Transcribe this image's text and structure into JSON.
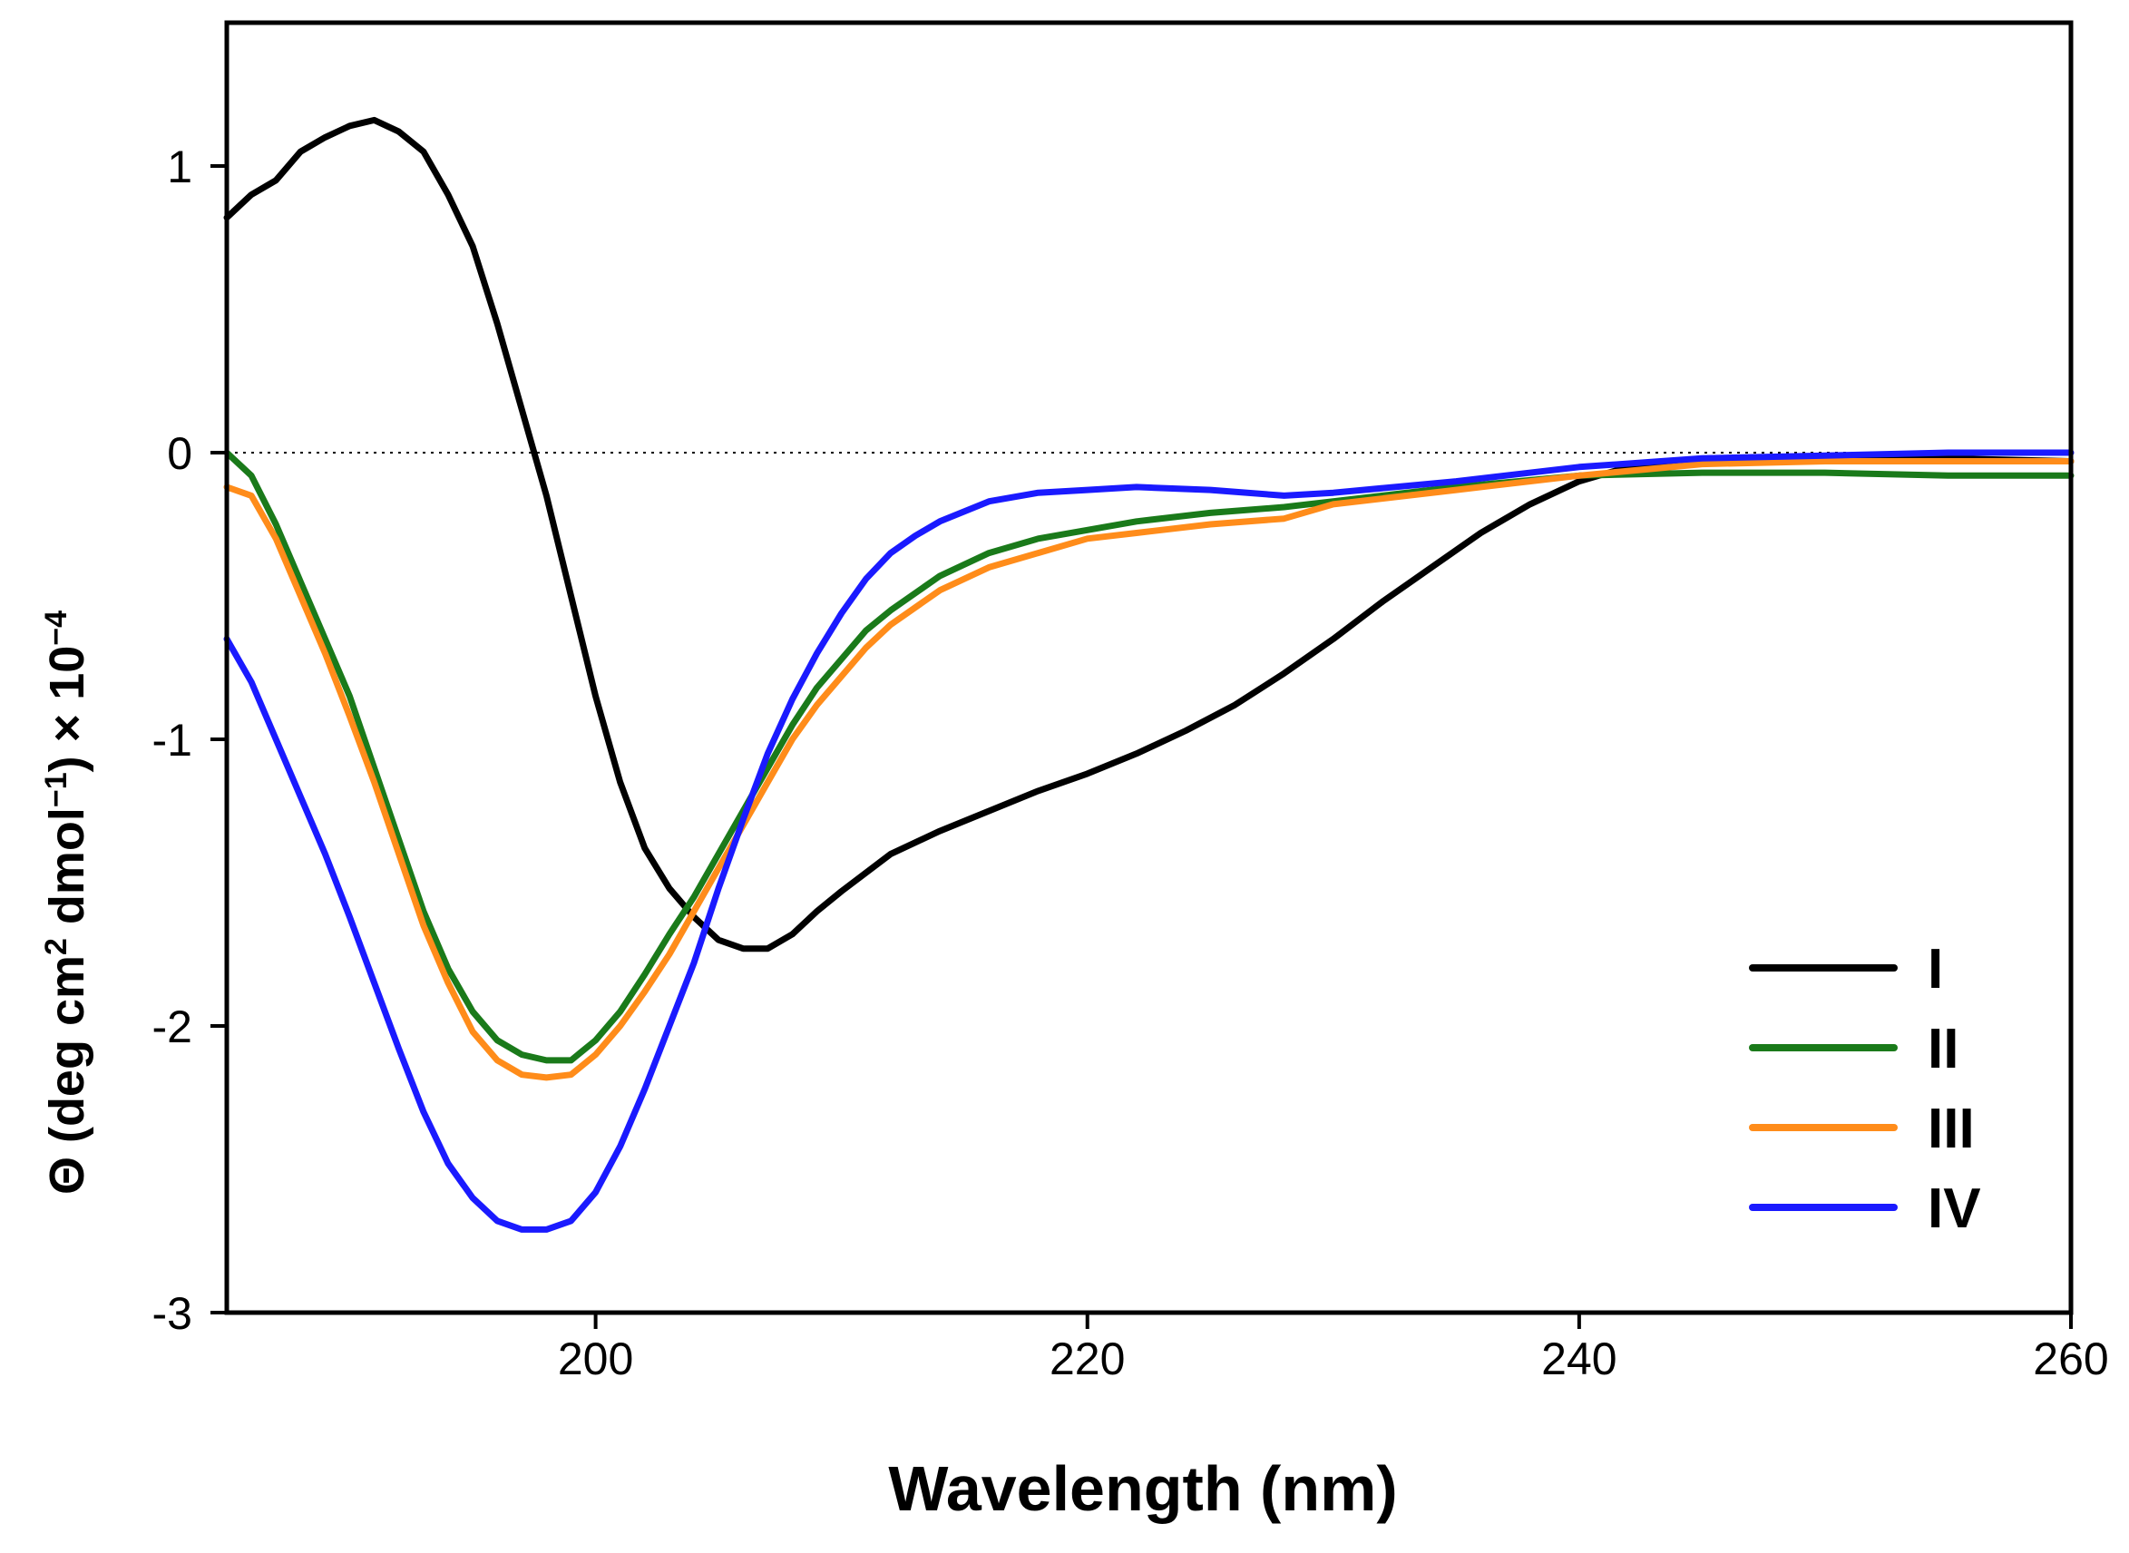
{
  "chart_data": {
    "type": "line",
    "title": "",
    "xlabel": "Wavelength (nm)",
    "ylabel": {
      "main": "Θ (deg cm",
      "sup1": "2",
      "mid": " dmol",
      "sup2": "−1",
      "tail": ") × 10",
      "sup3": "−4"
    },
    "xlim": [
      185,
      260
    ],
    "ylim": [
      -3,
      1.5
    ],
    "xticks": [
      200,
      220,
      240,
      260
    ],
    "xtick_labels": [
      "200",
      "220",
      "240",
      "260"
    ],
    "yticks": [
      1,
      0,
      -1,
      -2,
      -3
    ],
    "ytick_labels": [
      "1",
      "0",
      "-1",
      "-2",
      "-3"
    ],
    "zero_line": true,
    "legend_position": "bottom-right",
    "series": [
      {
        "name": "I",
        "color": "#000000",
        "x": [
          185,
          186,
          187,
          188,
          189,
          190,
          191,
          192,
          193,
          194,
          195,
          196,
          197,
          198,
          199,
          200,
          201,
          202,
          203,
          204,
          205,
          206,
          207,
          208,
          209,
          210,
          212,
          214,
          216,
          218,
          220,
          222,
          224,
          226,
          228,
          230,
          232,
          234,
          236,
          238,
          240,
          242,
          245,
          250,
          255,
          260
        ],
        "y": [
          0.82,
          0.9,
          0.95,
          1.05,
          1.1,
          1.14,
          1.16,
          1.12,
          1.05,
          0.9,
          0.72,
          0.45,
          0.15,
          -0.15,
          -0.5,
          -0.85,
          -1.15,
          -1.38,
          -1.52,
          -1.62,
          -1.7,
          -1.73,
          -1.73,
          -1.68,
          -1.6,
          -1.53,
          -1.4,
          -1.32,
          -1.25,
          -1.18,
          -1.12,
          -1.05,
          -0.97,
          -0.88,
          -0.77,
          -0.65,
          -0.52,
          -0.4,
          -0.28,
          -0.18,
          -0.1,
          -0.05,
          -0.03,
          -0.02,
          -0.02,
          -0.03
        ]
      },
      {
        "name": "II",
        "color": "#1a7a1a",
        "x": [
          185,
          186,
          187,
          188,
          189,
          190,
          191,
          192,
          193,
          194,
          195,
          196,
          197,
          198,
          199,
          200,
          201,
          202,
          203,
          204,
          205,
          206,
          207,
          208,
          209,
          210,
          211,
          212,
          214,
          216,
          218,
          220,
          222,
          225,
          228,
          230,
          235,
          240,
          245,
          250,
          255,
          260
        ],
        "y": [
          0.0,
          -0.08,
          -0.25,
          -0.45,
          -0.65,
          -0.85,
          -1.1,
          -1.35,
          -1.6,
          -1.8,
          -1.95,
          -2.05,
          -2.1,
          -2.12,
          -2.12,
          -2.05,
          -1.95,
          -1.82,
          -1.68,
          -1.55,
          -1.4,
          -1.25,
          -1.1,
          -0.95,
          -0.82,
          -0.72,
          -0.62,
          -0.55,
          -0.43,
          -0.35,
          -0.3,
          -0.27,
          -0.24,
          -0.21,
          -0.19,
          -0.17,
          -0.12,
          -0.08,
          -0.07,
          -0.07,
          -0.08,
          -0.08
        ]
      },
      {
        "name": "III",
        "color": "#ff8c1a",
        "x": [
          185,
          186,
          187,
          188,
          189,
          190,
          191,
          192,
          193,
          194,
          195,
          196,
          197,
          198,
          199,
          200,
          201,
          202,
          203,
          204,
          205,
          206,
          207,
          208,
          209,
          210,
          211,
          212,
          214,
          216,
          218,
          220,
          222,
          225,
          228,
          230,
          235,
          240,
          245,
          250,
          255,
          260
        ],
        "y": [
          -0.12,
          -0.15,
          -0.3,
          -0.5,
          -0.7,
          -0.92,
          -1.15,
          -1.4,
          -1.65,
          -1.85,
          -2.02,
          -2.12,
          -2.17,
          -2.18,
          -2.17,
          -2.1,
          -2.0,
          -1.88,
          -1.75,
          -1.6,
          -1.45,
          -1.3,
          -1.15,
          -1.0,
          -0.88,
          -0.78,
          -0.68,
          -0.6,
          -0.48,
          -0.4,
          -0.35,
          -0.3,
          -0.28,
          -0.25,
          -0.23,
          -0.18,
          -0.13,
          -0.08,
          -0.04,
          -0.03,
          -0.03,
          -0.03
        ]
      },
      {
        "name": "IV",
        "color": "#1a1aff",
        "x": [
          185,
          186,
          187,
          188,
          189,
          190,
          191,
          192,
          193,
          194,
          195,
          196,
          197,
          198,
          199,
          200,
          201,
          202,
          203,
          204,
          205,
          206,
          207,
          208,
          209,
          210,
          211,
          212,
          213,
          214,
          216,
          218,
          220,
          222,
          225,
          228,
          230,
          235,
          240,
          245,
          250,
          255,
          260
        ],
        "y": [
          -0.65,
          -0.8,
          -1.0,
          -1.2,
          -1.4,
          -1.62,
          -1.85,
          -2.08,
          -2.3,
          -2.48,
          -2.6,
          -2.68,
          -2.71,
          -2.71,
          -2.68,
          -2.58,
          -2.42,
          -2.22,
          -2.0,
          -1.78,
          -1.52,
          -1.28,
          -1.05,
          -0.86,
          -0.7,
          -0.56,
          -0.44,
          -0.35,
          -0.29,
          -0.24,
          -0.17,
          -0.14,
          -0.13,
          -0.12,
          -0.13,
          -0.15,
          -0.14,
          -0.1,
          -0.05,
          -0.02,
          -0.01,
          0.0,
          0.0
        ]
      }
    ]
  }
}
